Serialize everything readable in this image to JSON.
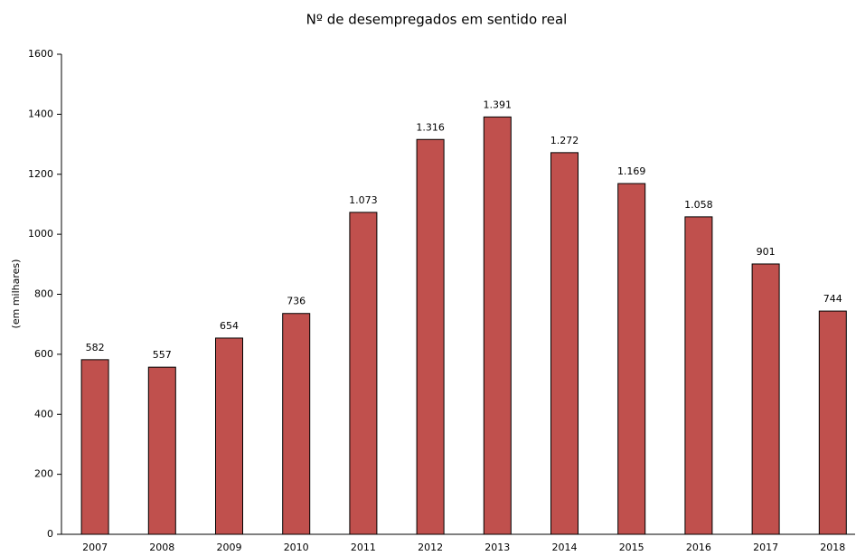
{
  "chart_data": {
    "type": "bar",
    "title": "Nº de desempregados em sentido real",
    "y_label": "(em milhares)",
    "categories": [
      "2007",
      "2008",
      "2009",
      "2010",
      "2011",
      "2012",
      "2013",
      "2014",
      "2015",
      "2016",
      "2017",
      "2018"
    ],
    "values": [
      582,
      557,
      654,
      736,
      1073,
      1316,
      1391,
      1272,
      1169,
      1058,
      901,
      744
    ],
    "value_labels": [
      "582",
      "557",
      "654",
      "736",
      "1.073",
      "1.316",
      "1.391",
      "1.272",
      "1.169",
      "1.058",
      "901",
      "744"
    ],
    "color": "#c0504d",
    "ylim": [
      0,
      1600
    ],
    "yticks": [
      0,
      200,
      400,
      600,
      800,
      1000,
      1200,
      1400,
      1600
    ],
    "grid": false
  }
}
